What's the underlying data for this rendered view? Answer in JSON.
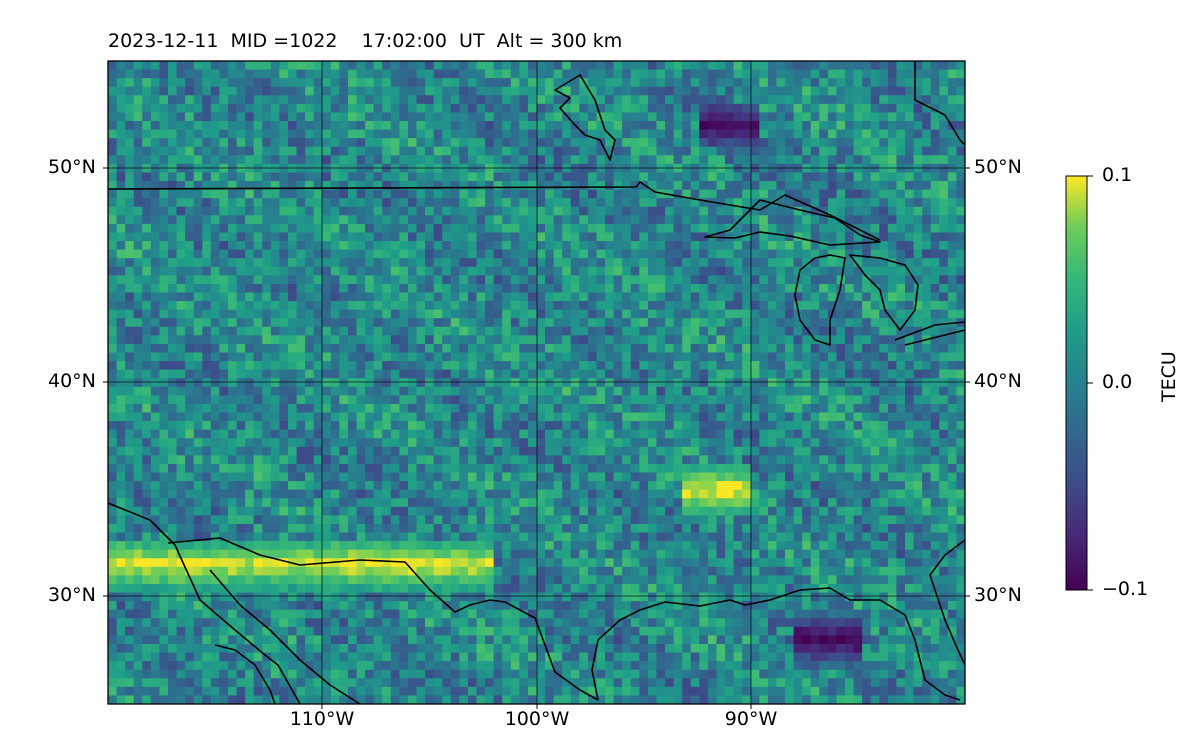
{
  "title": {
    "date": "2023-12-11",
    "mid": "MID =1022",
    "time": "17:02:00  UT",
    "altitude": "Alt = 300 km"
  },
  "map": {
    "projection": "plate-carree",
    "lon_range": [
      -120,
      -80
    ],
    "lat_range": [
      25,
      55
    ],
    "gridlines": true,
    "coastlines": true,
    "features": [
      "US-Canada border",
      "Great Lakes",
      "Gulf of Mexico coast",
      "Baja California / Gulf of California",
      "US-Mexico border"
    ]
  },
  "axes": {
    "lat_ticks_left": [
      "50°N",
      "40°N",
      "30°N"
    ],
    "lat_ticks_right": [
      "50°N",
      "40°N",
      "30°N"
    ],
    "lon_ticks": [
      "110°W",
      "100°W",
      "90°W"
    ]
  },
  "colorbar": {
    "label": "TECU",
    "colormap": "viridis",
    "range": [
      -0.1,
      0.1
    ],
    "ticks": [
      "0.1",
      "0.0",
      "−0.1"
    ]
  },
  "chart_data": {
    "type": "heatmap",
    "title": "2023-12-11  MID =1022    17:02:00  UT  Alt = 300 km",
    "xlabel": "",
    "ylabel": "",
    "x_range": [
      -120,
      -80
    ],
    "y_range": [
      25,
      55
    ],
    "z_label": "TECU",
    "z_range": [
      -0.1,
      0.1
    ],
    "grid": true,
    "notes_visible_features": [
      {
        "name": "enhanced band",
        "lat": 31.5,
        "lon_range": [
          -120,
          -102
        ],
        "value": 0.1
      },
      {
        "name": "enhanced patch",
        "lat": 35,
        "lon_range": [
          -93,
          -90
        ],
        "value": 0.1
      },
      {
        "name": "depleted patch",
        "lat": 52,
        "lon": -91,
        "value": -0.1
      },
      {
        "name": "depleted patch",
        "lat": 28,
        "lon_range": [
          -88,
          -85
        ],
        "value": -0.1
      }
    ]
  }
}
